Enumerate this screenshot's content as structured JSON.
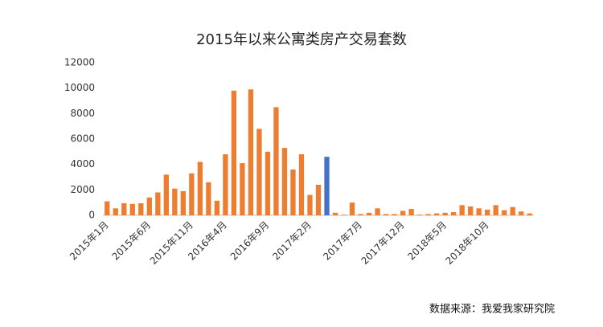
{
  "chart_data": {
    "type": "bar",
    "title": "2015年以来公寓类房产交易套数",
    "source": "数据来源：我爱我家研究院",
    "categories": [
      "2015年1月",
      null,
      null,
      null,
      null,
      "2015年6月",
      null,
      null,
      null,
      null,
      "2015年11月",
      null,
      null,
      null,
      "2016年4月",
      null,
      null,
      null,
      null,
      "2016年9月",
      null,
      null,
      null,
      null,
      "2017年2月",
      null,
      null,
      null,
      null,
      null,
      "2017年7月",
      null,
      null,
      null,
      null,
      "2017年12月",
      null,
      null,
      null,
      null,
      "2018年5月",
      null,
      null,
      null,
      null,
      "2018年10月",
      null,
      null,
      null,
      null,
      null
    ],
    "values": [
      1100,
      550,
      950,
      900,
      950,
      1400,
      1800,
      3200,
      2100,
      1900,
      3300,
      4200,
      2600,
      1150,
      4800,
      9800,
      4100,
      9900,
      6800,
      5000,
      8500,
      5300,
      3600,
      4800,
      1600,
      2400,
      4600,
      200,
      50,
      1000,
      100,
      200,
      550,
      100,
      100,
      350,
      500,
      50,
      100,
      150,
      200,
      250,
      800,
      700,
      550,
      450,
      800,
      400,
      650,
      300,
      150
    ],
    "colors": [
      "#ed7d31",
      "#ed7d31",
      "#ed7d31",
      "#ed7d31",
      "#ed7d31",
      "#ed7d31",
      "#ed7d31",
      "#ed7d31",
      "#ed7d31",
      "#ed7d31",
      "#ed7d31",
      "#ed7d31",
      "#ed7d31",
      "#ed7d31",
      "#ed7d31",
      "#ed7d31",
      "#ed7d31",
      "#ed7d31",
      "#ed7d31",
      "#ed7d31",
      "#ed7d31",
      "#ed7d31",
      "#ed7d31",
      "#ed7d31",
      "#ed7d31",
      "#ed7d31",
      "#4472c4",
      "#ed7d31",
      "#ed7d31",
      "#ed7d31",
      "#ed7d31",
      "#ed7d31",
      "#ed7d31",
      "#ed7d31",
      "#ed7d31",
      "#ed7d31",
      "#ed7d31",
      "#ed7d31",
      "#ed7d31",
      "#ed7d31",
      "#ed7d31",
      "#ed7d31",
      "#ed7d31",
      "#ed7d31",
      "#ed7d31",
      "#ed7d31",
      "#ed7d31",
      "#ed7d31",
      "#ed7d31",
      "#ed7d31",
      "#ed7d31"
    ],
    "ylim": [
      0,
      12000
    ],
    "yticks": [
      0,
      2000,
      4000,
      6000,
      8000,
      10000,
      12000
    ],
    "grid": false
  }
}
